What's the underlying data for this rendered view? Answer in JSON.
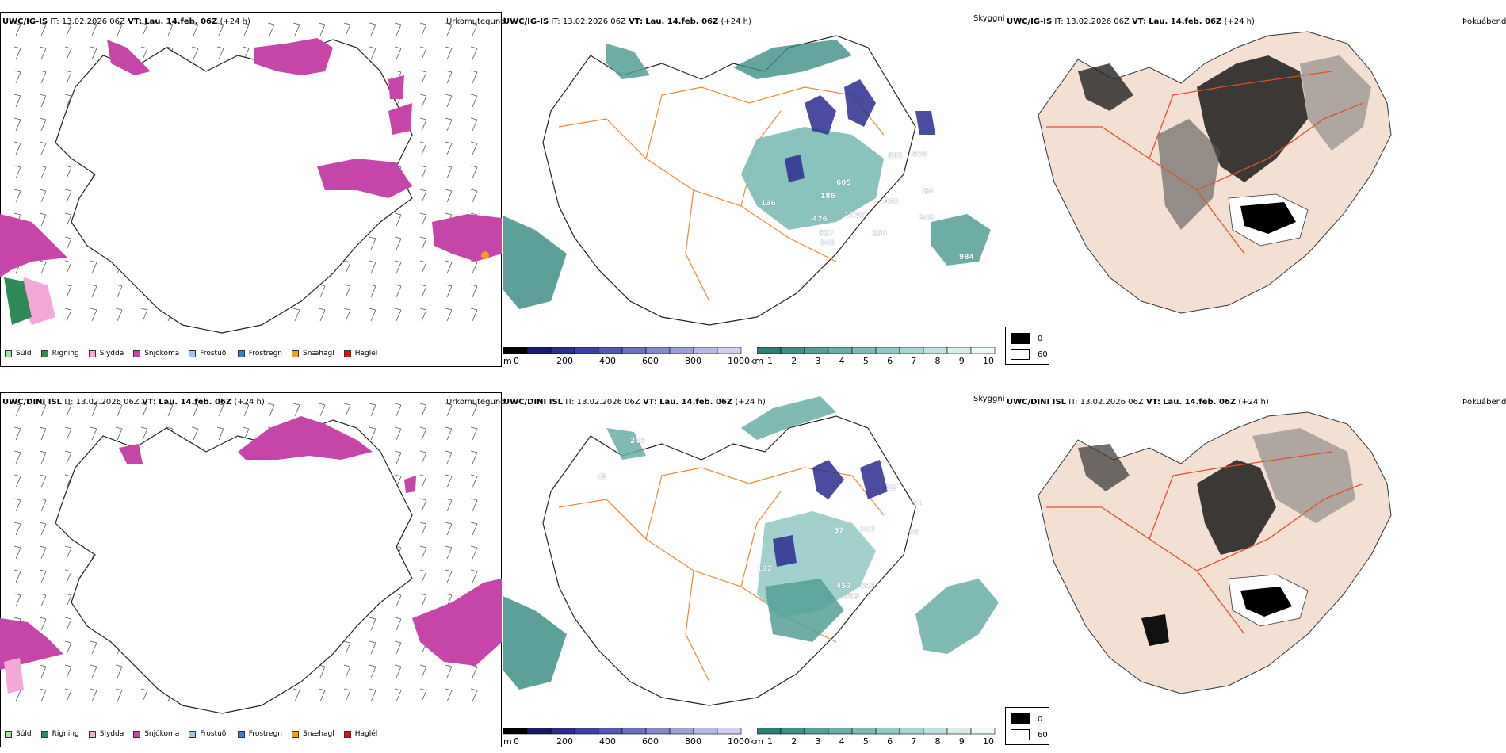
{
  "rows": [
    {
      "model": "UWC/IG-IS",
      "it_label": "IT:",
      "it_value": "13.02.2026 06Z",
      "vt_label": "VT:",
      "vt_value": "Lau. 14.feb. 06Z",
      "lead": "(+24 h)",
      "precip_labels": [],
      "vis_labels": [
        "136",
        "186",
        "476",
        "527",
        "549",
        "605",
        "1906",
        "800",
        "250",
        "362",
        "856",
        "349",
        "84",
        "984"
      ]
    },
    {
      "model": "UWC/DINI ISL",
      "it_label": "IT:",
      "it_value": "13.02.2026 06Z",
      "vt_label": "VT:",
      "vt_value": "Lau. 14.feb. 06Z",
      "lead": "(+24 h)",
      "precip_labels": [],
      "vis_labels": [
        "246",
        "43",
        "197",
        "57",
        "312",
        "453",
        "399",
        "687",
        "66",
        "51",
        "22"
      ]
    }
  ],
  "panel_titles": {
    "precip_type": "Úrkomutegund",
    "visibility": "Skyggni",
    "fog": "Þokuábendi"
  },
  "precip_legend": [
    {
      "label": "Súld",
      "color": "#9be89b"
    },
    {
      "label": "Rigning",
      "color": "#2e8b57"
    },
    {
      "label": "Slydda",
      "color": "#f3a8d8"
    },
    {
      "label": "Snjókoma",
      "color": "#c546a8"
    },
    {
      "label": "Frostúði",
      "color": "#9cc7ef"
    },
    {
      "label": "Frostregn",
      "color": "#3a7fcc"
    },
    {
      "label": "Snæhagl",
      "color": "#f0a020"
    },
    {
      "label": "Haglél",
      "color": "#e01010"
    }
  ],
  "colorbar_m": {
    "unit": "m",
    "ticks": [
      "0",
      "200",
      "400",
      "600",
      "800",
      "1000"
    ],
    "colors": [
      "#000000",
      "#1a1a6e",
      "#2b2d8e",
      "#3d40a6",
      "#5257b4",
      "#6b70c1",
      "#8489cd",
      "#9da1d8",
      "#b6b9e3",
      "#cfd1ee"
    ]
  },
  "colorbar_km": {
    "unit": "km",
    "ticks": [
      "1",
      "2",
      "3",
      "4",
      "5",
      "6",
      "7",
      "8",
      "9",
      "10"
    ],
    "colors": [
      "#2d7d75",
      "#3f8f87",
      "#539f97",
      "#68aea7",
      "#7dbcb6",
      "#92c9c4",
      "#a8d6d1",
      "#bfe2de",
      "#d6edea",
      "#eef8f6"
    ]
  },
  "fog_legend": [
    {
      "label": "0",
      "color": "#000000"
    },
    {
      "label": "60",
      "color": "#ffffff"
    }
  ]
}
